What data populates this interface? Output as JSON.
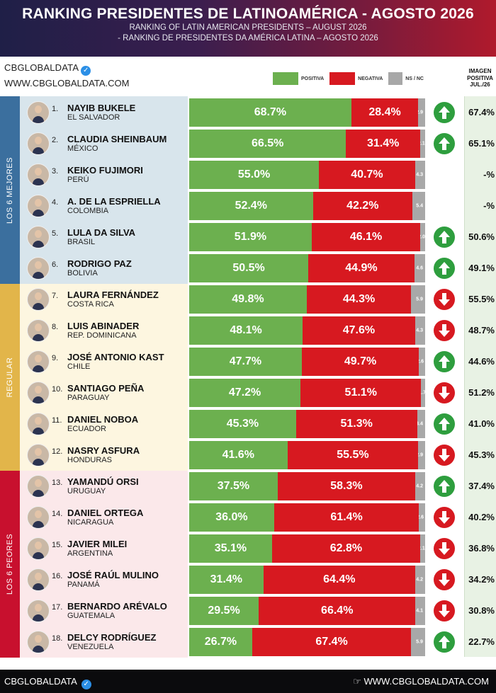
{
  "header": {
    "title": "RANKING PRESIDENTES DE LATINOAMÉRICA - AGOSTO 2026",
    "subtitle1": "RANKING OF LATIN AMERICAN PRESIDENTS – AUGUST 2026",
    "subtitle2": "- RANKING DE PRESIDENTES DA AMÉRICA LATINA – AGOSTO 2026"
  },
  "brand": {
    "name": "CBGLOBALDATA",
    "url": "WWW.CBGLOBALDATA.COM",
    "verified_icon": "verified-check-icon"
  },
  "legend": {
    "positive": "POSITIVA",
    "negative": "NEGATIVA",
    "ns": "NS / NC"
  },
  "colors": {
    "positive": "#6cb04f",
    "negative": "#d71920",
    "ns": "#a8a8a8",
    "up": "#2e9e3e",
    "down": "#d71920"
  },
  "prev_header": [
    "IMAGEN",
    "POSITIVA",
    "JUL./26"
  ],
  "bands": [
    {
      "label": "LOS 6 MEJORES",
      "color": "#3b6f9e",
      "bg": "#d8e5ec"
    },
    {
      "label": "REGULAR",
      "color": "#e2b54a",
      "bg": "#fdf6e0"
    },
    {
      "label": "LOS 6 PEORES",
      "color": "#c8102e",
      "bg": "#fbe8ea"
    }
  ],
  "chart_data": {
    "type": "bar",
    "stacked": true,
    "orientation": "horizontal",
    "title": "RANKING PRESIDENTES DE LATINOAMÉRICA - AGOSTO 2026",
    "series_names": [
      "POSITIVA",
      "NEGATIVA",
      "NS / NC"
    ],
    "rows": [
      {
        "rank": "1.",
        "name": "NAYIB BUKELE",
        "country": "EL SALVADOR",
        "positive": "68.7%",
        "negative": "28.4%",
        "ns": "2.9",
        "pos": 68.7,
        "neg": 28.4,
        "nsv": 2.9,
        "trend": "up",
        "prev": "67.4%"
      },
      {
        "rank": "2.",
        "name": "CLAUDIA SHEINBAUM",
        "country": "MÉXICO",
        "positive": "66.5%",
        "negative": "31.4%",
        "ns": "2.1",
        "pos": 66.5,
        "neg": 31.4,
        "nsv": 2.1,
        "trend": "up",
        "prev": "65.1%"
      },
      {
        "rank": "3.",
        "name": "KEIKO FUJIMORI",
        "country": "PERÚ",
        "positive": "55.0%",
        "negative": "40.7%",
        "ns": "4.3",
        "pos": 55.0,
        "neg": 40.7,
        "nsv": 4.3,
        "trend": "none",
        "prev": "-%"
      },
      {
        "rank": "4.",
        "name": "A. DE LA ESPRIELLA",
        "country": "COLOMBIA",
        "positive": "52.4%",
        "negative": "42.2%",
        "ns": "5.4",
        "pos": 52.4,
        "neg": 42.2,
        "nsv": 5.4,
        "trend": "none",
        "prev": "-%"
      },
      {
        "rank": "5.",
        "name": "LULA DA SILVA",
        "country": "BRASIL",
        "positive": "51.9%",
        "negative": "46.1%",
        "ns": "2.0",
        "pos": 51.9,
        "neg": 46.1,
        "nsv": 2.0,
        "trend": "up",
        "prev": "50.6%"
      },
      {
        "rank": "6.",
        "name": "RODRIGO PAZ",
        "country": "BOLIVIA",
        "positive": "50.5%",
        "negative": "44.9%",
        "ns": "4.6",
        "pos": 50.5,
        "neg": 44.9,
        "nsv": 4.6,
        "trend": "up",
        "prev": "49.1%"
      },
      {
        "rank": "7.",
        "name": "LAURA FERNÁNDEZ",
        "country": "COSTA RICA",
        "positive": "49.8%",
        "negative": "44.3%",
        "ns": "5.9",
        "pos": 49.8,
        "neg": 44.3,
        "nsv": 5.9,
        "trend": "down",
        "prev": "55.5%"
      },
      {
        "rank": "8.",
        "name": "LUIS ABINADER",
        "country": "REP. DOMINICANA",
        "positive": "48.1%",
        "negative": "47.6%",
        "ns": "4.3",
        "pos": 48.1,
        "neg": 47.6,
        "nsv": 4.3,
        "trend": "down",
        "prev": "48.7%"
      },
      {
        "rank": "9.",
        "name": "JOSÉ ANTONIO KAST",
        "country": "CHILE",
        "positive": "47.7%",
        "negative": "49.7%",
        "ns": "2.6",
        "pos": 47.7,
        "neg": 49.7,
        "nsv": 2.6,
        "trend": "up",
        "prev": "44.6%"
      },
      {
        "rank": "10.",
        "name": "SANTIAGO PEÑA",
        "country": "PARAGUAY",
        "positive": "47.2%",
        "negative": "51.1%",
        "ns": "1.7",
        "pos": 47.2,
        "neg": 51.1,
        "nsv": 1.7,
        "trend": "down",
        "prev": "51.2%"
      },
      {
        "rank": "11.",
        "name": "DANIEL NOBOA",
        "country": "ECUADOR",
        "positive": "45.3%",
        "negative": "51.3%",
        "ns": "3.4",
        "pos": 45.3,
        "neg": 51.3,
        "nsv": 3.4,
        "trend": "up",
        "prev": "41.0%"
      },
      {
        "rank": "12.",
        "name": "NASRY ASFURA",
        "country": "HONDURAS",
        "positive": "41.6%",
        "negative": "55.5%",
        "ns": "2.9",
        "pos": 41.6,
        "neg": 55.5,
        "nsv": 2.9,
        "trend": "down",
        "prev": "45.3%"
      },
      {
        "rank": "13.",
        "name": "YAMANDÚ ORSI",
        "country": "URUGUAY",
        "positive": "37.5%",
        "negative": "58.3%",
        "ns": "4.2",
        "pos": 37.5,
        "neg": 58.3,
        "nsv": 4.2,
        "trend": "up",
        "prev": "37.4%"
      },
      {
        "rank": "14.",
        "name": "DANIEL ORTEGA",
        "country": "NICARAGUA",
        "positive": "36.0%",
        "negative": "61.4%",
        "ns": "2.6",
        "pos": 36.0,
        "neg": 61.4,
        "nsv": 2.6,
        "trend": "down",
        "prev": "40.2%"
      },
      {
        "rank": "15.",
        "name": "JAVIER MILEI",
        "country": "ARGENTINA",
        "positive": "35.1%",
        "negative": "62.8%",
        "ns": "2.1",
        "pos": 35.1,
        "neg": 62.8,
        "nsv": 2.1,
        "trend": "down",
        "prev": "36.8%"
      },
      {
        "rank": "16.",
        "name": "JOSÉ RAÚL MULINO",
        "country": "PANAMÁ",
        "positive": "31.4%",
        "negative": "64.4%",
        "ns": "4.2",
        "pos": 31.4,
        "neg": 64.4,
        "nsv": 4.2,
        "trend": "down",
        "prev": "34.2%"
      },
      {
        "rank": "17.",
        "name": "BERNARDO ARÉVALO",
        "country": "GUATEMALA",
        "positive": "29.5%",
        "negative": "66.4%",
        "ns": "4.1",
        "pos": 29.5,
        "neg": 66.4,
        "nsv": 4.1,
        "trend": "down",
        "prev": "30.8%"
      },
      {
        "rank": "18.",
        "name": "DELCY RODRÍGUEZ",
        "country": "VENEZUELA",
        "positive": "26.7%",
        "negative": "67.4%",
        "ns": "5.9",
        "pos": 26.7,
        "neg": 67.4,
        "nsv": 5.9,
        "trend": "up",
        "prev": "22.7%"
      }
    ]
  },
  "footer": {
    "left": "CBGLOBALDATA",
    "right": "WWW.CBGLOBALDATA.COM"
  }
}
